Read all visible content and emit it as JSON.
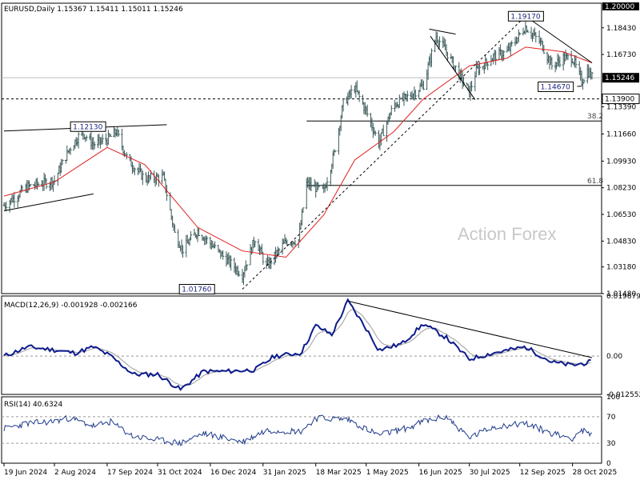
{
  "chart_data": [
    {
      "type": "candlestick",
      "title": "EURUSD,Daily  1.15367 1.15411 1.15011 1.15246",
      "symbol": "EURUSD",
      "timeframe": "Daily",
      "ohlc_last": {
        "open": 1.15367,
        "high": 1.15411,
        "low": 1.15011,
        "close": 1.15246
      },
      "ylim": [
        1.0148,
        1.2
      ],
      "y_ticks": [
        "1.20000",
        "1.18430",
        "1.16730",
        "1.15246",
        "1.13900",
        "1.13390",
        "1.11660",
        "1.09930",
        "1.08230",
        "1.06530",
        "1.04830",
        "1.03180",
        "1.01480"
      ],
      "x_ticks": [
        "19 Jun 2024",
        "2 Aug 2024",
        "17 Sep 2024",
        "31 Oct 2024",
        "16 Dec 2024",
        "31 Jan 2025",
        "18 Mar 2025",
        "1 May 2025",
        "16 Jun 2025",
        "30 Jul 2025",
        "12 Sep 2025",
        "28 Oct 2025"
      ],
      "swing_points": [
        {
          "label": "1.12130",
          "value": 1.1213,
          "date": "early Oct 2024"
        },
        {
          "label": "1.01760",
          "value": 1.0176,
          "date": "Jan 2025"
        },
        {
          "label": "1.19170",
          "value": 1.1917,
          "date": "mid Sep 2025"
        },
        {
          "label": "1.14670",
          "value": 1.1467,
          "date": "early Nov 2025"
        }
      ],
      "horizontal_levels": [
        {
          "label": "1.13900",
          "value": 1.139,
          "style": "dashed"
        },
        {
          "label": "1.15246",
          "value": 1.15246,
          "style": "current-price"
        }
      ],
      "fibonacci_levels": [
        {
          "label": "38.2",
          "value": 1.1249
        },
        {
          "label": "61.8",
          "value": 1.0838
        }
      ],
      "close_path": [
        [
          "2024-06-19",
          1.071
        ],
        [
          "2024-07-10",
          1.083
        ],
        [
          "2024-08-02",
          1.087
        ],
        [
          "2024-08-15",
          1.107
        ],
        [
          "2024-08-26",
          1.118
        ],
        [
          "2024-09-05",
          1.11
        ],
        [
          "2024-09-17",
          1.113
        ],
        [
          "2024-09-25",
          1.118
        ],
        [
          "2024-10-05",
          1.1
        ],
        [
          "2024-10-20",
          1.088
        ],
        [
          "2024-11-05",
          1.089
        ],
        [
          "2024-11-15",
          1.053
        ],
        [
          "2024-11-22",
          1.043
        ],
        [
          "2024-12-05",
          1.055
        ],
        [
          "2024-12-25",
          1.04
        ],
        [
          "2025-01-13",
          1.027
        ],
        [
          "2025-01-24",
          1.05
        ],
        [
          "2025-02-03",
          1.032
        ],
        [
          "2025-02-20",
          1.048
        ],
        [
          "2025-03-03",
          1.049
        ],
        [
          "2025-03-10",
          1.085
        ],
        [
          "2025-03-25",
          1.08
        ],
        [
          "2025-04-03",
          1.104
        ],
        [
          "2025-04-11",
          1.136
        ],
        [
          "2025-04-21",
          1.146
        ],
        [
          "2025-05-01",
          1.131
        ],
        [
          "2025-05-12",
          1.111
        ],
        [
          "2025-05-25",
          1.135
        ],
        [
          "2025-06-10",
          1.142
        ],
        [
          "2025-06-20",
          1.148
        ],
        [
          "2025-07-01",
          1.179
        ],
        [
          "2025-07-10",
          1.169
        ],
        [
          "2025-07-30",
          1.143
        ],
        [
          "2025-08-05",
          1.157
        ],
        [
          "2025-08-20",
          1.166
        ],
        [
          "2025-09-01",
          1.169
        ],
        [
          "2025-09-17",
          1.185
        ],
        [
          "2025-10-01",
          1.174
        ],
        [
          "2025-10-10",
          1.16
        ],
        [
          "2025-10-20",
          1.165
        ],
        [
          "2025-10-28",
          1.165
        ],
        [
          "2025-11-05",
          1.15
        ],
        [
          "2025-11-10",
          1.157
        ],
        [
          "2025-11-14",
          1.153
        ]
      ],
      "sma_path": [
        [
          "2024-06-19",
          1.077
        ],
        [
          "2024-08-02",
          1.086
        ],
        [
          "2024-09-17",
          1.108
        ],
        [
          "2024-10-20",
          1.097
        ],
        [
          "2024-12-05",
          1.057
        ],
        [
          "2025-01-13",
          1.042
        ],
        [
          "2025-02-20",
          1.038
        ],
        [
          "2025-03-25",
          1.065
        ],
        [
          "2025-04-21",
          1.1
        ],
        [
          "2025-05-25",
          1.118
        ],
        [
          "2025-06-20",
          1.139
        ],
        [
          "2025-07-30",
          1.16
        ],
        [
          "2025-09-01",
          1.165
        ],
        [
          "2025-09-17",
          1.172
        ],
        [
          "2025-10-20",
          1.169
        ],
        [
          "2025-11-14",
          1.162
        ]
      ],
      "watermark": "Action Forex"
    },
    {
      "type": "line",
      "title": "MACD(12,26,9) -0.001928 -0.002166",
      "ylim": [
        -0.012552,
        0.019679
      ],
      "y_ticks": [
        "0.019679",
        "0.00",
        "-0.012552"
      ],
      "series": [
        {
          "name": "MACD",
          "values": [
            [
              "2024-06-19",
              0.0
            ],
            [
              "2024-07-10",
              0.003
            ],
            [
              "2024-08-02",
              0.002
            ],
            [
              "2024-08-20",
              0.001
            ],
            [
              "2024-09-05",
              0.003
            ],
            [
              "2024-09-20",
              0.0
            ],
            [
              "2024-10-10",
              -0.006
            ],
            [
              "2024-10-31",
              -0.006
            ],
            [
              "2024-11-20",
              -0.011
            ],
            [
              "2024-12-10",
              -0.005
            ],
            [
              "2024-12-30",
              -0.005
            ],
            [
              "2025-01-24",
              -0.0045
            ],
            [
              "2025-02-10",
              0.0
            ],
            [
              "2025-03-05",
              0.001
            ],
            [
              "2025-03-18",
              0.01
            ],
            [
              "2025-04-01",
              0.007
            ],
            [
              "2025-04-15",
              0.018
            ],
            [
              "2025-05-01",
              0.009
            ],
            [
              "2025-05-12",
              0.002
            ],
            [
              "2025-06-01",
              0.004
            ],
            [
              "2025-06-20",
              0.0105
            ],
            [
              "2025-07-10",
              0.006
            ],
            [
              "2025-07-30",
              -0.001
            ],
            [
              "2025-08-20",
              0.001
            ],
            [
              "2025-09-17",
              0.003
            ],
            [
              "2025-10-10",
              -0.002
            ],
            [
              "2025-10-28",
              -0.003
            ],
            [
              "2025-11-14",
              -0.0019
            ]
          ]
        }
      ],
      "trendline_label": "descending resistance"
    },
    {
      "type": "line",
      "title": "RSI(14) 40.6324",
      "ylim": [
        0,
        100
      ],
      "y_ticks": [
        "100",
        "70",
        "30",
        "0"
      ],
      "series": [
        {
          "name": "RSI",
          "values": [
            [
              "2024-06-19",
              52
            ],
            [
              "2024-07-10",
              60
            ],
            [
              "2024-08-02",
              63
            ],
            [
              "2024-08-15",
              68
            ],
            [
              "2024-09-05",
              56
            ],
            [
              "2024-09-20",
              62
            ],
            [
              "2024-10-10",
              40
            ],
            [
              "2024-10-31",
              35
            ],
            [
              "2024-11-20",
              30
            ],
            [
              "2024-12-10",
              45
            ],
            [
              "2025-01-13",
              32
            ],
            [
              "2025-02-03",
              50
            ],
            [
              "2025-03-05",
              48
            ],
            [
              "2025-03-18",
              68
            ],
            [
              "2025-04-15",
              66
            ],
            [
              "2025-05-12",
              42
            ],
            [
              "2025-06-10",
              55
            ],
            [
              "2025-06-20",
              63
            ],
            [
              "2025-07-10",
              70
            ],
            [
              "2025-07-30",
              38
            ],
            [
              "2025-08-20",
              55
            ],
            [
              "2025-09-17",
              60
            ],
            [
              "2025-10-10",
              45
            ],
            [
              "2025-10-28",
              38
            ],
            [
              "2025-11-05",
              50
            ],
            [
              "2025-11-14",
              40.6
            ]
          ]
        }
      ]
    }
  ]
}
